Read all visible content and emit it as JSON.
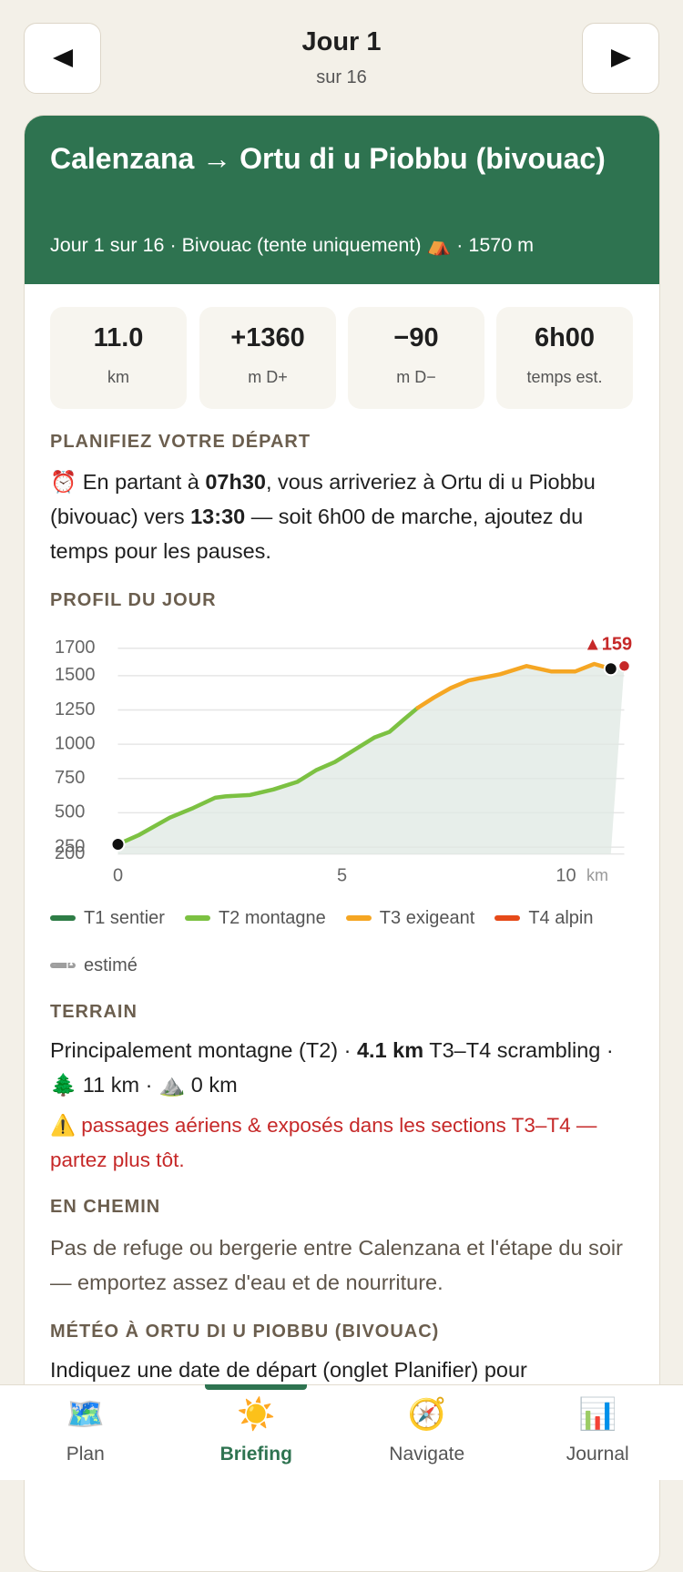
{
  "header": {
    "title": "Jour 1",
    "subtitle": "sur 16"
  },
  "card": {
    "title": "Calenzana → Ortu di u Piobbu (bivouac)",
    "subtitle": "Jour 1 sur 16 · Bivouac (tente uniquement) ⛺ · 1570 m"
  },
  "stats": [
    {
      "value": "11.0",
      "label": "km"
    },
    {
      "value": "+1360",
      "label": "m D+"
    },
    {
      "value": "−90",
      "label": "m D−"
    },
    {
      "value": "6h00",
      "label": "temps est."
    }
  ],
  "plan": {
    "heading": "PLANIFIEZ VOTRE DÉPART",
    "text": [
      {
        "text": "⏰"
      },
      {
        "text": " En partant à "
      },
      {
        "text": "07h30",
        "bold": true
      },
      {
        "text": ", vous arriveriez à Ortu di u Piobbu (bivouac) vers "
      },
      {
        "text": "13:30",
        "bold": true
      },
      {
        "text": " — soit 6h00 de marche, ajoutez du temps pour les pauses."
      }
    ]
  },
  "profile_heading": "PROFIL DU JOUR",
  "chart_data": {
    "type": "line",
    "x": [
      0,
      0.48,
      1.16,
      1.68,
      2.17,
      2.4,
      2.95,
      3.47,
      4.0,
      4.42,
      4.84,
      5.26,
      5.73,
      6.06,
      6.38,
      6.69,
      7.05,
      7.43,
      7.83,
      8.53,
      9.12,
      9.68,
      10.2,
      10.63,
      11.0
    ],
    "series": [
      {
        "name": "T1 sentier",
        "color": "#2e7d46",
        "values": [
          null,
          null,
          null,
          null,
          null,
          null,
          null,
          null,
          null,
          null,
          null,
          null,
          null,
          null,
          null,
          null,
          null,
          null,
          null,
          null,
          null,
          null,
          null,
          null,
          null
        ]
      },
      {
        "name": "T2 montagne",
        "color": "#7cc142",
        "values": [
          270,
          340,
          465,
          535,
          610,
          620,
          630,
          670,
          725,
          810,
          870,
          955,
          1050,
          1090,
          1180,
          1265,
          null,
          null,
          null,
          null,
          null,
          null,
          null,
          null,
          null
        ]
      },
      {
        "name": "T3 exigeant",
        "color": "#f5a623",
        "values": [
          null,
          null,
          null,
          null,
          null,
          null,
          null,
          null,
          null,
          null,
          null,
          null,
          null,
          null,
          null,
          1265,
          1340,
          1410,
          1465,
          1510,
          1570,
          1530,
          1530,
          1585,
          1550
        ]
      },
      {
        "name": "T4 alpin",
        "color": "#e64a19",
        "values": [
          null,
          null,
          null,
          null,
          null,
          null,
          null,
          null,
          null,
          null,
          null,
          null,
          null,
          null,
          null,
          null,
          null,
          null,
          null,
          null,
          null,
          null,
          null,
          null,
          null
        ]
      },
      {
        "name": "estimé",
        "color": "#9e9e9e",
        "dashed": true,
        "values": [
          null,
          null,
          null,
          null,
          null,
          null,
          null,
          null,
          null,
          null,
          null,
          null,
          null,
          null,
          null,
          null,
          null,
          null,
          null,
          null,
          null,
          null,
          null,
          null,
          null
        ]
      }
    ],
    "xlim": [
      0,
      11.3
    ],
    "xticks": [
      0,
      5,
      10
    ],
    "xlabel": "km",
    "ylim": [
      200,
      1700
    ],
    "yticks": [
      200,
      250,
      500,
      750,
      1000,
      1250,
      1500,
      1700
    ],
    "grid": true,
    "target": {
      "x": 11.3,
      "y": 1570,
      "label": "▲159",
      "color": "#c62828"
    }
  },
  "terrain": {
    "heading": "TERRAIN",
    "text": [
      {
        "text": "Principalement montagne (T2) · "
      },
      {
        "text": "4.1 km",
        "bold": true
      },
      {
        "text": " T3–T4 scrambling · "
      },
      {
        "text": "🌲"
      },
      {
        "text": " 11 km · "
      },
      {
        "text": "⛰️"
      },
      {
        "text": " 0 km"
      }
    ],
    "warning": [
      {
        "text": "⚠️"
      },
      {
        "text": " passages aériens & exposés dans les sections T3–T4 — partez plus tôt."
      }
    ]
  },
  "route": {
    "heading": "EN CHEMIN",
    "text": "Pas de refuge ou bergerie entre Calenzana et l'étape du soir — emportez assez d'eau et de nourriture."
  },
  "weather": {
    "heading": "MÉTÉO À ORTU DI U PIOBBU (BIVOUAC)",
    "text": "Indiquez une date de départ (onglet Planifier) pour"
  },
  "tabs": [
    {
      "icon": "🗺️",
      "label": "Plan"
    },
    {
      "icon": "☀️",
      "label": "Briefing",
      "active": true
    },
    {
      "icon": "🧭",
      "label": "Navigate"
    },
    {
      "icon": "📊",
      "label": "Journal"
    }
  ]
}
